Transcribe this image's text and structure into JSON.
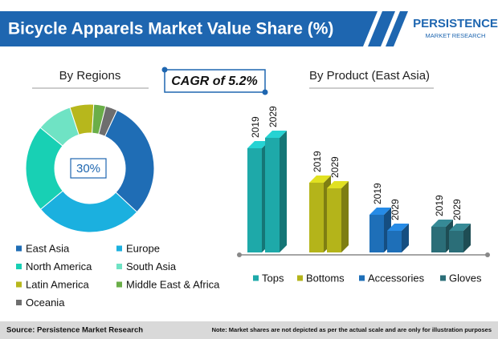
{
  "header": {
    "title": "Bicycle Apparels Market Value Share (%)",
    "logo": [
      "PERSISTENCE",
      "MARKET RESEARCH"
    ]
  },
  "cagr": "CAGR of 5.2%",
  "chart_data": [
    {
      "type": "donut",
      "title": "By Regions",
      "categories": [
        "East Asia",
        "Europe",
        "North America",
        "South Asia",
        "Latin America",
        "Middle East & Africa",
        "Oceania"
      ],
      "values": [
        30,
        27,
        22,
        9,
        6,
        3,
        3
      ],
      "value_labels": [
        "30%",
        null,
        null,
        null,
        null,
        null,
        null
      ],
      "colors": [
        "#1f6db5",
        "#1bb0df",
        "#18d0b4",
        "#6fe3c4",
        "#b7b71c",
        "#6aae48",
        "#6e6e6e"
      ]
    },
    {
      "type": "bar3d",
      "title": "By Product (East Asia)",
      "categories": [
        "Tops",
        "Bottoms",
        "Accessories",
        "Gloves"
      ],
      "colors": [
        "#1ea9a9",
        "#b4b41a",
        "#1e6fb8",
        "#2b6e78"
      ],
      "series": [
        {
          "name": "2019",
          "values": [
            130,
            87,
            47,
            32
          ]
        },
        {
          "name": "2029",
          "values": [
            143,
            80,
            27,
            27
          ]
        }
      ]
    }
  ],
  "footer": {
    "source": "Source: Persistence Market Research",
    "note": "Note: Market shares are not depicted as per the actual scale and are only for illustration purposes"
  }
}
